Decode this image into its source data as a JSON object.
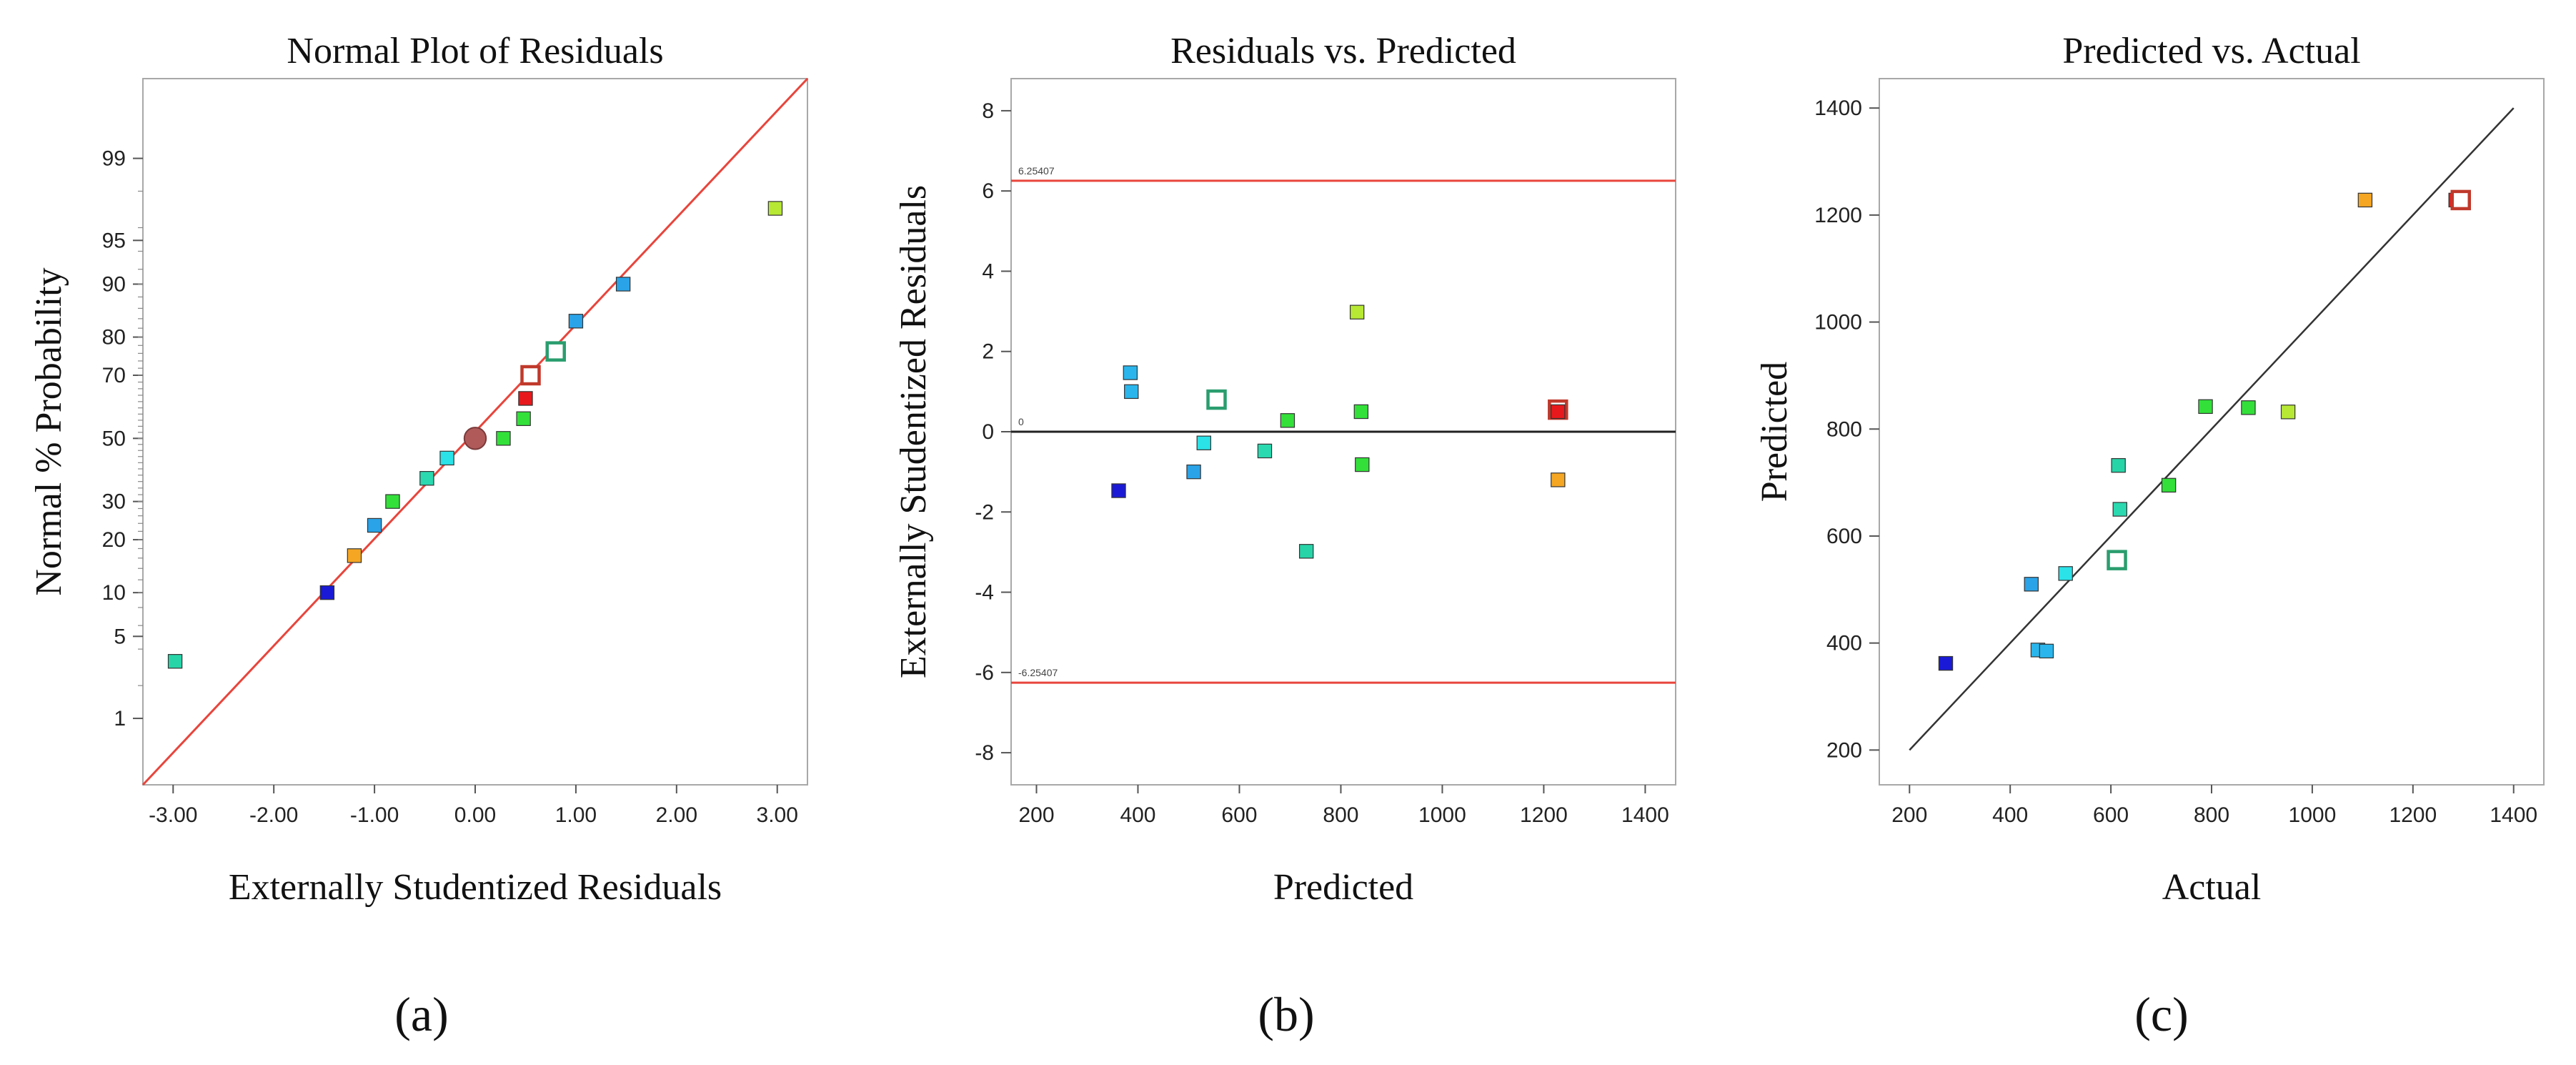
{
  "chart_data": [
    {
      "type": "scatter",
      "panel_label": "(a)",
      "title": "Normal Plot of Residuals",
      "xlabel": "Externally Studentized Residuals",
      "ylabel": "Normal % Probability",
      "xlim": [
        -3.3,
        3.3
      ],
      "x_ticks": [
        "-3.00",
        "-2.00",
        "-1.00",
        "0.00",
        "1.00",
        "2.00",
        "3.00"
      ],
      "x_tick_values": [
        -3,
        -2,
        -1,
        0,
        1,
        2,
        3
      ],
      "y_scale": "normal-probability",
      "y_ticks": [
        "1",
        "5",
        "10",
        "20",
        "30",
        "50",
        "70",
        "80",
        "90",
        "95",
        "99"
      ],
      "y_tick_values": [
        1,
        5,
        10,
        20,
        30,
        50,
        70,
        80,
        90,
        95,
        99
      ],
      "reference_line": {
        "from": [
          -3.3,
          0.2
        ],
        "to": [
          3.3,
          99.86
        ],
        "color": "#e8453c"
      },
      "points": [
        {
          "x": -2.98,
          "p": 3.2,
          "color": "#27d4a8",
          "shape": "square"
        },
        {
          "x": -1.47,
          "p": 10.0,
          "color": "#1a1ad6",
          "shape": "square"
        },
        {
          "x": -1.2,
          "p": 16.5,
          "color": "#f5a623",
          "shape": "square"
        },
        {
          "x": -1.0,
          "p": 23.5,
          "color": "#2aa3e8",
          "shape": "square"
        },
        {
          "x": -0.82,
          "p": 30.0,
          "color": "#33e03a",
          "shape": "square"
        },
        {
          "x": -0.48,
          "p": 37.0,
          "color": "#2ad9b0",
          "shape": "square"
        },
        {
          "x": -0.28,
          "p": 43.5,
          "color": "#2ae2e8",
          "shape": "square"
        },
        {
          "x": 0.0,
          "p": 50.0,
          "color": "#b05a5a",
          "shape": "circle"
        },
        {
          "x": 0.28,
          "p": 50.0,
          "color": "#33e03a",
          "shape": "square"
        },
        {
          "x": 0.48,
          "p": 56.5,
          "color": "#33e03a",
          "shape": "square"
        },
        {
          "x": 0.5,
          "p": 63.0,
          "color": "#e8191c",
          "shape": "square"
        },
        {
          "x": 0.55,
          "p": 70.0,
          "color": "#c0392b",
          "shape": "hollow-square"
        },
        {
          "x": 0.8,
          "p": 76.5,
          "color": "#2a9d6e",
          "shape": "hollow-square"
        },
        {
          "x": 1.0,
          "p": 83.5,
          "color": "#2aa3e8",
          "shape": "square"
        },
        {
          "x": 1.47,
          "p": 90.0,
          "color": "#2aa3e8",
          "shape": "square"
        },
        {
          "x": 2.98,
          "p": 97.2,
          "color": "#b6e834",
          "shape": "square"
        }
      ]
    },
    {
      "type": "scatter",
      "panel_label": "(b)",
      "title": "Residuals vs. Predicted",
      "xlabel": "Predicted",
      "ylabel": "Externally Studentized Residuals",
      "xlim": [
        150,
        1460
      ],
      "ylim": [
        -8.8,
        8.8
      ],
      "x_ticks": [
        "200",
        "400",
        "600",
        "800",
        "1000",
        "1200",
        "1400"
      ],
      "x_tick_values": [
        200,
        400,
        600,
        800,
        1000,
        1200,
        1400
      ],
      "y_ticks": [
        "-8",
        "-6",
        "-4",
        "-2",
        "0",
        "2",
        "4",
        "6",
        "8"
      ],
      "y_tick_values": [
        -8,
        -6,
        -4,
        -2,
        0,
        2,
        4,
        6,
        8
      ],
      "limit_lines": [
        {
          "y": 6.25407,
          "label": "6.25407",
          "color": "#e8453c"
        },
        {
          "y": -6.25407,
          "label": "-6.25407",
          "color": "#e8453c"
        }
      ],
      "zero_line": {
        "y": 0,
        "label": "0",
        "color": "#222222"
      },
      "points": [
        {
          "x": 362,
          "y": -1.47,
          "color": "#1a1ad6",
          "shape": "square"
        },
        {
          "x": 385,
          "y": 1.47,
          "color": "#2ab6ec",
          "shape": "square"
        },
        {
          "x": 387,
          "y": 1.0,
          "color": "#2ab6ec",
          "shape": "square"
        },
        {
          "x": 510,
          "y": -1.0,
          "color": "#2aa3e8",
          "shape": "square"
        },
        {
          "x": 530,
          "y": -0.28,
          "color": "#2ae2e8",
          "shape": "square"
        },
        {
          "x": 555,
          "y": 0.8,
          "color": "#2a9d6e",
          "shape": "hollow-square"
        },
        {
          "x": 650,
          "y": -0.48,
          "color": "#2ad9b0",
          "shape": "square"
        },
        {
          "x": 695,
          "y": 0.28,
          "color": "#33e03a",
          "shape": "square"
        },
        {
          "x": 732,
          "y": -2.98,
          "color": "#27d4a8",
          "shape": "square"
        },
        {
          "x": 832,
          "y": 2.98,
          "color": "#b6e834",
          "shape": "square"
        },
        {
          "x": 840,
          "y": 0.5,
          "color": "#33e03a",
          "shape": "square"
        },
        {
          "x": 842,
          "y": -0.82,
          "color": "#33e03a",
          "shape": "square"
        },
        {
          "x": 1228,
          "y": 0.55,
          "color": "#c0392b",
          "shape": "hollow-square"
        },
        {
          "x": 1228,
          "y": 0.5,
          "color": "#e8191c",
          "shape": "square"
        },
        {
          "x": 1228,
          "y": -1.2,
          "color": "#f5a623",
          "shape": "square"
        }
      ]
    },
    {
      "type": "scatter",
      "panel_label": "(c)",
      "title": "Predicted vs. Actual",
      "xlabel": "Actual",
      "ylabel": "Predicted",
      "xlim": [
        140,
        1460
      ],
      "ylim": [
        135,
        1455
      ],
      "x_ticks": [
        "200",
        "400",
        "600",
        "800",
        "1000",
        "1200",
        "1400"
      ],
      "x_tick_values": [
        200,
        400,
        600,
        800,
        1000,
        1200,
        1400
      ],
      "y_ticks": [
        "200",
        "400",
        "600",
        "800",
        "1000",
        "1200",
        "1400"
      ],
      "y_tick_values": [
        200,
        400,
        600,
        800,
        1000,
        1200,
        1400
      ],
      "reference_line": {
        "from": [
          200,
          200
        ],
        "to": [
          1400,
          1400
        ],
        "color": "#333333"
      },
      "points": [
        {
          "x": 272,
          "y": 362,
          "color": "#1a1ad6",
          "shape": "square"
        },
        {
          "x": 442,
          "y": 510,
          "color": "#2aa3e8",
          "shape": "square"
        },
        {
          "x": 455,
          "y": 387,
          "color": "#2ab6ec",
          "shape": "square"
        },
        {
          "x": 472,
          "y": 385,
          "color": "#2ab6ec",
          "shape": "square"
        },
        {
          "x": 510,
          "y": 530,
          "color": "#2ae2e8",
          "shape": "square"
        },
        {
          "x": 612,
          "y": 555,
          "color": "#2a9d6e",
          "shape": "hollow-square"
        },
        {
          "x": 615,
          "y": 732,
          "color": "#27d4a8",
          "shape": "square"
        },
        {
          "x": 618,
          "y": 650,
          "color": "#2ad9b0",
          "shape": "square"
        },
        {
          "x": 715,
          "y": 695,
          "color": "#33e03a",
          "shape": "square"
        },
        {
          "x": 788,
          "y": 842,
          "color": "#33e03a",
          "shape": "square"
        },
        {
          "x": 873,
          "y": 840,
          "color": "#33e03a",
          "shape": "square"
        },
        {
          "x": 952,
          "y": 832,
          "color": "#b6e834",
          "shape": "square"
        },
        {
          "x": 1105,
          "y": 1228,
          "color": "#f5a623",
          "shape": "square"
        },
        {
          "x": 1285,
          "y": 1228,
          "color": "#e8191c",
          "shape": "square"
        },
        {
          "x": 1295,
          "y": 1228,
          "color": "#c0392b",
          "shape": "hollow-square"
        }
      ]
    }
  ]
}
